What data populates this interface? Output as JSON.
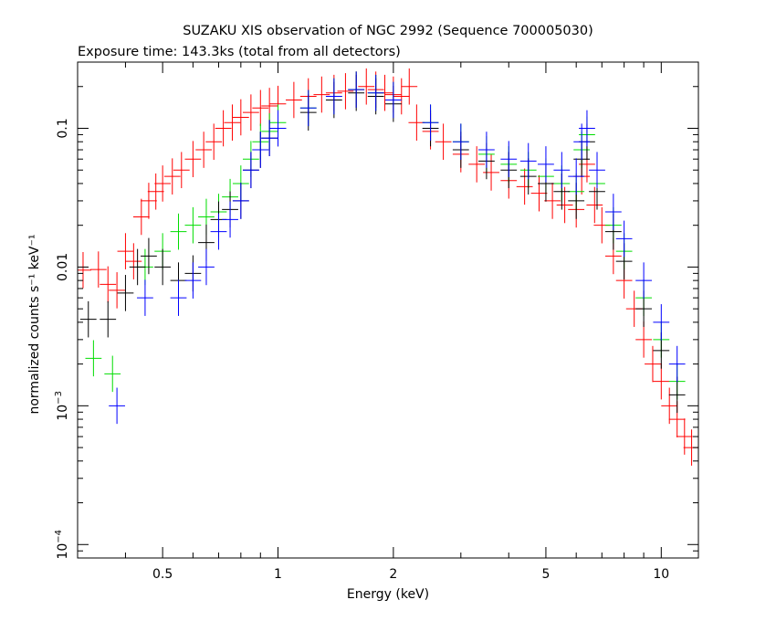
{
  "chart_data": {
    "type": "scatter",
    "title": "SUZAKU XIS observation of NGC 2992 (Sequence 700005030)",
    "subtitle": "Exposure time: 143.3ks (total from all detectors)",
    "xlabel": "Energy (keV)",
    "ylabel": "normalized counts s⁻¹ keV⁻¹",
    "x_scale": "log",
    "y_scale": "log",
    "xlim": [
      0.3,
      12.5
    ],
    "ylim": [
      8e-05,
      0.3
    ],
    "x_ticks": [
      {
        "value": 0.5,
        "label": "0.5"
      },
      {
        "value": 1,
        "label": "1"
      },
      {
        "value": 2,
        "label": "2"
      },
      {
        "value": 5,
        "label": "5"
      },
      {
        "value": 10,
        "label": "10"
      }
    ],
    "y_ticks": [
      {
        "value": 0.0001,
        "label": "10",
        "sup": "−4"
      },
      {
        "value": 0.001,
        "label": "10",
        "sup": "−3"
      },
      {
        "value": 0.01,
        "label": "0.01",
        "sup": ""
      },
      {
        "value": 0.1,
        "label": "0.1",
        "sup": ""
      }
    ],
    "grid": false,
    "legend": "none",
    "series": [
      {
        "color": "#ff0000",
        "points": [
          [
            0.31,
            0.0095
          ],
          [
            0.34,
            0.0096
          ],
          [
            0.36,
            0.0075
          ],
          [
            0.38,
            0.0068
          ],
          [
            0.4,
            0.013
          ],
          [
            0.42,
            0.011
          ],
          [
            0.44,
            0.023
          ],
          [
            0.46,
            0.03
          ],
          [
            0.48,
            0.035
          ],
          [
            0.5,
            0.04
          ],
          [
            0.53,
            0.045
          ],
          [
            0.56,
            0.05
          ],
          [
            0.6,
            0.06
          ],
          [
            0.64,
            0.07
          ],
          [
            0.68,
            0.08
          ],
          [
            0.72,
            0.1
          ],
          [
            0.76,
            0.11
          ],
          [
            0.8,
            0.12
          ],
          [
            0.85,
            0.13
          ],
          [
            0.9,
            0.14
          ],
          [
            0.95,
            0.145
          ],
          [
            1.0,
            0.15
          ],
          [
            1.1,
            0.16
          ],
          [
            1.2,
            0.17
          ],
          [
            1.3,
            0.175
          ],
          [
            1.4,
            0.18
          ],
          [
            1.5,
            0.185
          ],
          [
            1.6,
            0.19
          ],
          [
            1.7,
            0.2
          ],
          [
            1.8,
            0.19
          ],
          [
            1.9,
            0.18
          ],
          [
            2.0,
            0.175
          ],
          [
            2.1,
            0.17
          ],
          [
            2.2,
            0.2
          ],
          [
            2.3,
            0.11
          ],
          [
            2.5,
            0.095
          ],
          [
            2.7,
            0.08
          ],
          [
            3.0,
            0.065
          ],
          [
            3.3,
            0.055
          ],
          [
            3.6,
            0.048
          ],
          [
            4.0,
            0.042
          ],
          [
            4.4,
            0.038
          ],
          [
            4.8,
            0.034
          ],
          [
            5.2,
            0.03
          ],
          [
            5.6,
            0.028
          ],
          [
            6.0,
            0.026
          ],
          [
            6.2,
            0.045
          ],
          [
            6.4,
            0.055
          ],
          [
            6.7,
            0.028
          ],
          [
            7.0,
            0.02
          ],
          [
            7.5,
            0.012
          ],
          [
            8.0,
            0.008
          ],
          [
            8.5,
            0.005
          ],
          [
            9.0,
            0.003
          ],
          [
            9.5,
            0.002
          ],
          [
            10.0,
            0.0015
          ],
          [
            10.5,
            0.001
          ],
          [
            11.0,
            0.0008
          ],
          [
            11.5,
            0.0006
          ],
          [
            12.0,
            0.0005
          ]
        ]
      },
      {
        "color": "#00dd00",
        "points": [
          [
            0.33,
            0.0022
          ],
          [
            0.37,
            0.0017
          ],
          [
            0.45,
            0.01
          ],
          [
            0.5,
            0.013
          ],
          [
            0.55,
            0.018
          ],
          [
            0.6,
            0.02
          ],
          [
            0.65,
            0.023
          ],
          [
            0.7,
            0.025
          ],
          [
            0.75,
            0.032
          ],
          [
            0.8,
            0.04
          ],
          [
            0.85,
            0.06
          ],
          [
            0.9,
            0.08
          ],
          [
            0.95,
            0.095
          ],
          [
            1.0,
            0.11
          ],
          [
            1.2,
            0.14
          ],
          [
            1.4,
            0.17
          ],
          [
            1.6,
            0.19
          ],
          [
            1.8,
            0.18
          ],
          [
            2.0,
            0.16
          ],
          [
            2.5,
            0.11
          ],
          [
            3.0,
            0.08
          ],
          [
            3.5,
            0.065
          ],
          [
            4.0,
            0.055
          ],
          [
            4.5,
            0.05
          ],
          [
            5.0,
            0.045
          ],
          [
            5.5,
            0.04
          ],
          [
            6.0,
            0.035
          ],
          [
            6.2,
            0.07
          ],
          [
            6.4,
            0.09
          ],
          [
            6.8,
            0.04
          ],
          [
            7.5,
            0.02
          ],
          [
            8.0,
            0.013
          ],
          [
            9.0,
            0.006
          ],
          [
            10.0,
            0.003
          ],
          [
            11.0,
            0.0015
          ]
        ]
      },
      {
        "color": "#000000",
        "points": [
          [
            0.32,
            0.0042
          ],
          [
            0.36,
            0.0042
          ],
          [
            0.4,
            0.0065
          ],
          [
            0.43,
            0.01
          ],
          [
            0.46,
            0.012
          ],
          [
            0.5,
            0.01
          ],
          [
            0.55,
            0.008
          ],
          [
            0.6,
            0.009
          ],
          [
            0.65,
            0.015
          ],
          [
            0.7,
            0.022
          ],
          [
            0.75,
            0.026
          ],
          [
            0.8,
            0.03
          ],
          [
            0.85,
            0.05
          ],
          [
            0.9,
            0.07
          ],
          [
            0.95,
            0.085
          ],
          [
            1.0,
            0.1
          ],
          [
            1.2,
            0.13
          ],
          [
            1.4,
            0.16
          ],
          [
            1.6,
            0.18
          ],
          [
            1.8,
            0.17
          ],
          [
            2.0,
            0.15
          ],
          [
            2.5,
            0.1
          ],
          [
            3.0,
            0.07
          ],
          [
            3.5,
            0.058
          ],
          [
            4.0,
            0.05
          ],
          [
            4.5,
            0.045
          ],
          [
            5.0,
            0.04
          ],
          [
            5.5,
            0.035
          ],
          [
            6.0,
            0.03
          ],
          [
            6.2,
            0.06
          ],
          [
            6.4,
            0.08
          ],
          [
            6.8,
            0.035
          ],
          [
            7.5,
            0.018
          ],
          [
            8.0,
            0.011
          ],
          [
            9.0,
            0.005
          ],
          [
            10.0,
            0.0025
          ],
          [
            11.0,
            0.0012
          ]
        ]
      },
      {
        "color": "#0000ff",
        "points": [
          [
            0.38,
            0.001
          ],
          [
            0.45,
            0.006
          ],
          [
            0.55,
            0.006
          ],
          [
            0.6,
            0.008
          ],
          [
            0.65,
            0.01
          ],
          [
            0.7,
            0.018
          ],
          [
            0.75,
            0.022
          ],
          [
            0.8,
            0.03
          ],
          [
            0.85,
            0.05
          ],
          [
            0.9,
            0.07
          ],
          [
            0.95,
            0.085
          ],
          [
            1.0,
            0.1
          ],
          [
            1.2,
            0.14
          ],
          [
            1.4,
            0.17
          ],
          [
            1.6,
            0.19
          ],
          [
            1.8,
            0.18
          ],
          [
            2.0,
            0.16
          ],
          [
            2.5,
            0.11
          ],
          [
            3.0,
            0.08
          ],
          [
            3.5,
            0.07
          ],
          [
            4.0,
            0.06
          ],
          [
            4.5,
            0.058
          ],
          [
            5.0,
            0.055
          ],
          [
            5.5,
            0.05
          ],
          [
            6.0,
            0.045
          ],
          [
            6.2,
            0.08
          ],
          [
            6.4,
            0.1
          ],
          [
            6.8,
            0.05
          ],
          [
            7.5,
            0.025
          ],
          [
            8.0,
            0.016
          ],
          [
            9.0,
            0.008
          ],
          [
            10.0,
            0.004
          ],
          [
            11.0,
            0.002
          ]
        ]
      }
    ]
  }
}
